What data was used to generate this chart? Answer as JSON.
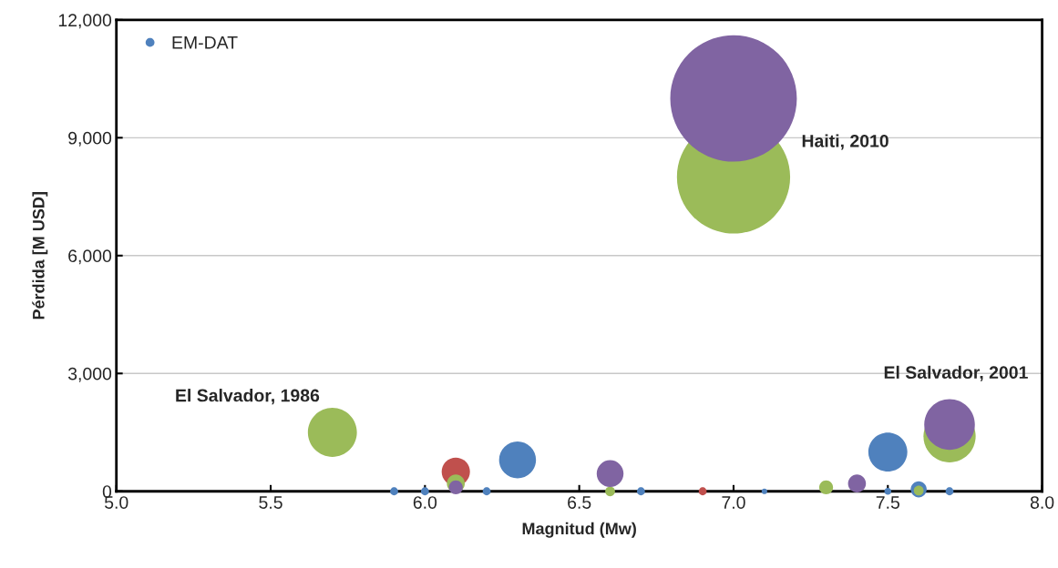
{
  "chart_data": {
    "type": "bubble",
    "xlabel": "Magnitud (Mw)",
    "ylabel": "Pérdida [M USD]",
    "xlim": [
      5.0,
      8.0
    ],
    "xticks": [
      {
        "value": 5.0,
        "label": "5.0"
      },
      {
        "value": 5.5,
        "label": "5.5"
      },
      {
        "value": 6.0,
        "label": "6.0"
      },
      {
        "value": 6.5,
        "label": "6.5"
      },
      {
        "value": 7.0,
        "label": "7.0"
      },
      {
        "value": 7.5,
        "label": "7.5"
      },
      {
        "value": 8.0,
        "label": "8.0"
      }
    ],
    "ylim": [
      0,
      12000
    ],
    "yticks": [
      {
        "value": 0,
        "label": "0"
      },
      {
        "value": 3000,
        "label": "3,000"
      },
      {
        "value": 6000,
        "label": "6,000"
      },
      {
        "value": 9000,
        "label": "9,000"
      },
      {
        "value": 12000,
        "label": "12,000"
      }
    ],
    "grid": "y",
    "legend": "top left",
    "series": [
      {
        "name": "EM-DAT",
        "color": "#4f81bd",
        "x": [
          5.9,
          6.0,
          6.2,
          6.3,
          6.7,
          7.1,
          7.5,
          7.5,
          7.6,
          7.7
        ],
        "values": [
          0,
          0,
          0,
          800,
          0,
          0,
          1000,
          0,
          50,
          0
        ],
        "sizes": [
          0.004,
          0.004,
          0.004,
          0.085,
          0.004,
          0.002,
          0.095,
          0.003,
          0.016,
          0.004
        ]
      },
      {
        "color": "#c0504d",
        "x": [
          6.1,
          6.9
        ],
        "values": [
          500,
          0
        ],
        "sizes": [
          0.05,
          0.004
        ]
      },
      {
        "color": "#9bbb59",
        "x": [
          5.7,
          6.1,
          6.6,
          7.0,
          7.3,
          7.6,
          7.7
        ],
        "values": [
          1500,
          200,
          0,
          8000,
          100,
          20,
          1400
        ],
        "sizes": [
          0.15,
          0.02,
          0.006,
          0.8,
          0.012,
          0.006,
          0.17
        ]
      },
      {
        "color": "#8064a2",
        "x": [
          6.1,
          6.6,
          7.0,
          7.4,
          7.7
        ],
        "values": [
          100,
          450,
          10000,
          200,
          1700
        ],
        "sizes": [
          0.012,
          0.045,
          1.0,
          0.02,
          0.16
        ]
      }
    ],
    "annotations": [
      {
        "text": "El Salvador, 1986",
        "x": 5.7,
        "y": 1500
      },
      "Haiti, 2010",
      {
        "text": "El Salvador, 2001",
        "x": 7.7,
        "y": 1700
      }
    ]
  }
}
